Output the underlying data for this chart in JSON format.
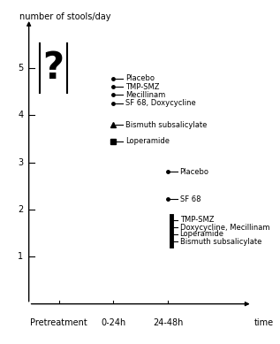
{
  "title_y": "number of stools/day",
  "xlabel": "time",
  "x_ticks": [
    "Pretreatment",
    "0-24h",
    "24-48h"
  ],
  "x_positions": [
    0.5,
    1.5,
    2.5
  ],
  "ylim": [
    0,
    6.2
  ],
  "xlim": [
    -0.3,
    4.2
  ],
  "yticks": [
    1,
    2,
    3,
    4,
    5
  ],
  "groups_0_24_x": 1.5,
  "groups_24_48_x": 2.5,
  "groups_0_24": [
    {
      "y": 4.78,
      "marker": "dot",
      "label": "Placebo"
    },
    {
      "y": 4.6,
      "marker": "dot",
      "label": "TMP-SMZ"
    },
    {
      "y": 4.43,
      "marker": "dot",
      "label": "Mecillinam"
    },
    {
      "y": 4.26,
      "marker": "dot",
      "label": "SF 68, Doxycycline"
    },
    {
      "y": 3.8,
      "marker": "triangle",
      "label": "Bismuth subsalicylate"
    },
    {
      "y": 3.45,
      "marker": "square",
      "label": "Loperamide"
    }
  ],
  "groups_24_48": [
    {
      "y": 2.8,
      "marker": "dot",
      "label": "Placebo"
    },
    {
      "y": 2.22,
      "marker": "dot",
      "label": "SF 68"
    },
    {
      "y": 1.78,
      "marker": "bracket",
      "label": "TMP-SMZ"
    },
    {
      "y": 1.62,
      "marker": "bracket",
      "label": "Doxycycline, Mecillinam"
    },
    {
      "y": 1.48,
      "marker": "bracket",
      "label": "Loperamide"
    },
    {
      "y": 1.32,
      "marker": "bracket",
      "label": "Bismuth subsalicylate"
    }
  ],
  "font_size_axis_label": 7,
  "font_size_tick": 7,
  "font_size_legend": 6,
  "font_size_question": 30,
  "bg_color": "#ffffff",
  "text_color": "#000000"
}
